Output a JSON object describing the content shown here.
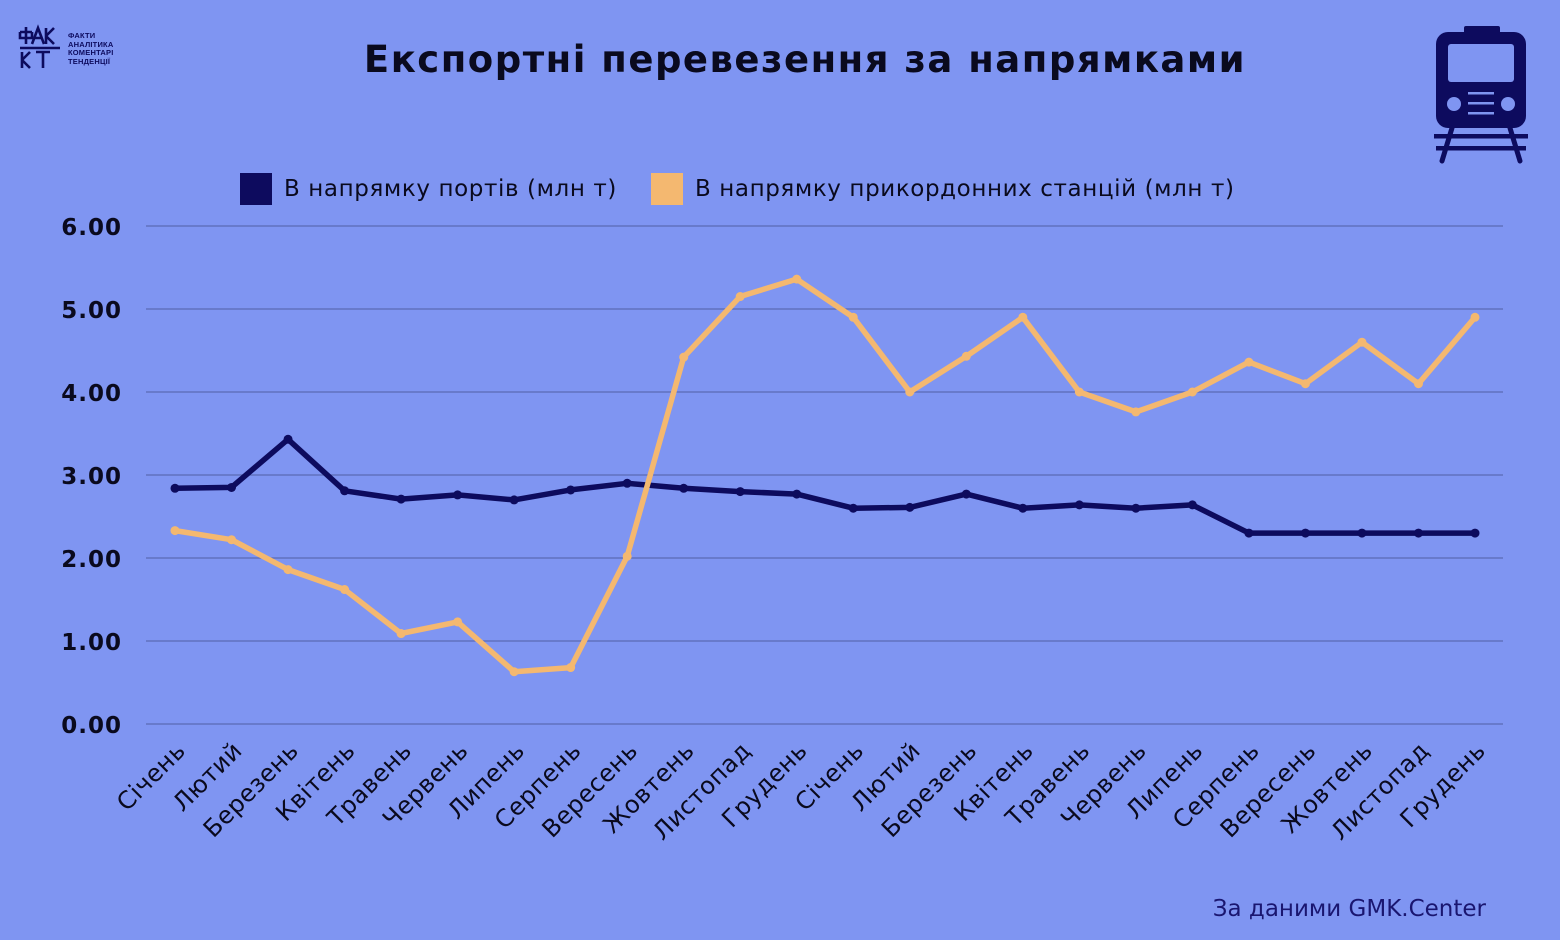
{
  "logo": {
    "mark": "ФАКТ",
    "lines": [
      "ФАКТИ",
      "АНАЛІТИКА",
      "КОМЕНТАРІ",
      "ТЕНДЕНЦІЇ"
    ]
  },
  "icon": "train-front-icon",
  "source": "За даними GMK.Center",
  "colors": {
    "background": "#7f95f2",
    "ports": "#0d0b5e",
    "border": "#f4b870",
    "grid": "#5b6bb4"
  },
  "chart_data": {
    "type": "line",
    "title": "Експортні перевезення за напрямками",
    "xlabel": "",
    "ylabel": "",
    "ylim": [
      0,
      6
    ],
    "yticks": [
      "0.00",
      "1.00",
      "2.00",
      "3.00",
      "4.00",
      "5.00",
      "6.00"
    ],
    "grid": true,
    "legend_position": "top",
    "categories": [
      "Січень",
      "Лютий",
      "Березень",
      "Квітень",
      "Травень",
      "Червень",
      "Липень",
      "Серпень",
      "Вересень",
      "Жовтень",
      "Листопад",
      "Грудень",
      "Січень",
      "Лютий",
      "Березень",
      "Квітень",
      "Травень",
      "Червень",
      "Липень",
      "Серпень",
      "Вересень",
      "Жовтень",
      "Листопад",
      "Грудень"
    ],
    "series": [
      {
        "name": "В напрямку портів (млн т)",
        "color": "#0d0b5e",
        "values": [
          2.84,
          2.85,
          3.43,
          2.81,
          2.71,
          2.76,
          2.7,
          2.82,
          2.9,
          2.84,
          2.8,
          2.77,
          2.6,
          2.61,
          2.77,
          2.6,
          2.64,
          2.6,
          2.64,
          2.3,
          2.3,
          2.3,
          2.3,
          2.3
        ]
      },
      {
        "name": "В напрямку прикордонних станцій (млн т)",
        "color": "#f4b870",
        "values": [
          2.33,
          2.22,
          1.86,
          1.62,
          1.09,
          1.23,
          0.63,
          0.68,
          2.02,
          4.42,
          5.15,
          5.36,
          4.9,
          4.0,
          4.43,
          4.9,
          4.0,
          3.76,
          4.0,
          4.36,
          4.1,
          4.6,
          4.1,
          4.9
        ]
      }
    ]
  }
}
